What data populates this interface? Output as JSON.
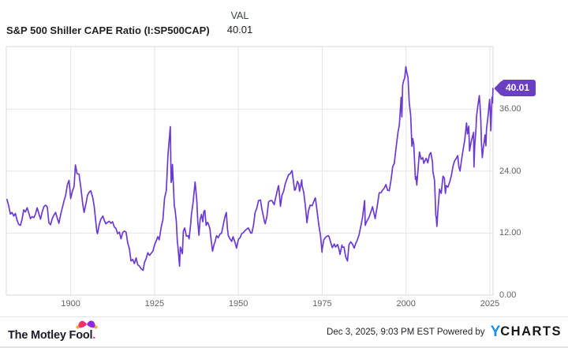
{
  "header": {
    "title": "S&P 500 Shiller CAPE Ratio (I:SP500CAP)",
    "val_label": "VAL",
    "val_value": "40.01"
  },
  "footer": {
    "fool_text": "The Motley Fool",
    "fool_dot": ".",
    "attribution": "Dec 3, 2025, 9:03 PM EST Powered by",
    "brand_y": "Y",
    "brand_rest": "CHARTS"
  },
  "chart_data": {
    "type": "line",
    "title": "S&P 500 Shiller CAPE Ratio (I:SP500CAP)",
    "series_name": "S&P 500 Shiller CAPE Ratio",
    "current_value_label": "40.01",
    "current_value": 40.01,
    "line_color": "#6b3ad3",
    "badge_color": "#6b3fc4",
    "grid_color": "#e4e4e4",
    "border_color": "#d9d9d9",
    "x_range": [
      1880.8,
      2025.95
    ],
    "y_range": [
      0,
      48.1
    ],
    "legend_position": "none",
    "grid": true,
    "x_ticks": [
      {
        "value": 1900,
        "label": "1900"
      },
      {
        "value": 1925,
        "label": "1925"
      },
      {
        "value": 1950,
        "label": "1950"
      },
      {
        "value": 1975,
        "label": "1975"
      },
      {
        "value": 2000,
        "label": "2000"
      },
      {
        "value": 2025,
        "label": "2025"
      }
    ],
    "y_ticks": [
      {
        "value": 0,
        "label": "0.00"
      },
      {
        "value": 12,
        "label": "12.00"
      },
      {
        "value": 24,
        "label": "24.00"
      },
      {
        "value": 36,
        "label": "36.00"
      }
    ],
    "points": [
      [
        1881,
        18.5
      ],
      [
        1881.5,
        17.3
      ],
      [
        1882,
        15.7
      ],
      [
        1882.5,
        16.0
      ],
      [
        1883,
        15.3
      ],
      [
        1883.5,
        15.8
      ],
      [
        1884,
        14.5
      ],
      [
        1884.5,
        13.7
      ],
      [
        1885,
        13.5
      ],
      [
        1885.5,
        14.7
      ],
      [
        1886,
        16.5
      ],
      [
        1886.5,
        16.1
      ],
      [
        1887,
        16.9
      ],
      [
        1887.5,
        15.9
      ],
      [
        1888,
        14.8
      ],
      [
        1888.5,
        15.2
      ],
      [
        1889,
        15.0
      ],
      [
        1889.5,
        15.7
      ],
      [
        1890,
        16.9
      ],
      [
        1890.5,
        15.8
      ],
      [
        1891,
        14.7
      ],
      [
        1891.5,
        16.1
      ],
      [
        1892,
        17.1
      ],
      [
        1892.5,
        17.4
      ],
      [
        1893,
        17.1
      ],
      [
        1893.5,
        14.0
      ],
      [
        1894,
        13.6
      ],
      [
        1894.5,
        14.8
      ],
      [
        1895,
        15.5
      ],
      [
        1895.5,
        16.0
      ],
      [
        1896,
        14.9
      ],
      [
        1896.5,
        13.9
      ],
      [
        1897,
        15.6
      ],
      [
        1897.5,
        16.9
      ],
      [
        1898,
        18.2
      ],
      [
        1898.5,
        19.3
      ],
      [
        1899,
        21.4
      ],
      [
        1899.5,
        22.2
      ],
      [
        1900,
        18.7
      ],
      [
        1900.5,
        20.1
      ],
      [
        1901,
        21.0
      ],
      [
        1901.4,
        25.2
      ],
      [
        1901.9,
        23.5
      ],
      [
        1902.5,
        23.4
      ],
      [
        1903,
        20.9
      ],
      [
        1903.6,
        17.6
      ],
      [
        1904,
        16.0
      ],
      [
        1904.6,
        17.9
      ],
      [
        1905,
        19.3
      ],
      [
        1905.5,
        19.9
      ],
      [
        1906,
        20.2
      ],
      [
        1906.6,
        18.8
      ],
      [
        1907,
        17.2
      ],
      [
        1907.8,
        12.2
      ],
      [
        1908,
        11.9
      ],
      [
        1908.5,
        13.6
      ],
      [
        1909,
        14.7
      ],
      [
        1909.6,
        15.3
      ],
      [
        1910,
        14.5
      ],
      [
        1910.5,
        13.8
      ],
      [
        1911,
        14.1
      ],
      [
        1911.5,
        14.3
      ],
      [
        1912,
        13.9
      ],
      [
        1912.5,
        14.2
      ],
      [
        1913,
        13.2
      ],
      [
        1913.5,
        12.9
      ],
      [
        1914,
        11.9
      ],
      [
        1914.5,
        12.2
      ],
      [
        1915,
        10.9
      ],
      [
        1915.5,
        12.1
      ],
      [
        1916,
        12.4
      ],
      [
        1916.5,
        12.2
      ],
      [
        1917,
        10.1
      ],
      [
        1917.5,
        9.0
      ],
      [
        1918,
        6.6
      ],
      [
        1918.5,
        6.9
      ],
      [
        1919,
        6.1
      ],
      [
        1919.5,
        7.2
      ],
      [
        1920,
        5.9
      ],
      [
        1920.5,
        5.6
      ],
      [
        1921,
        5.1
      ],
      [
        1921.6,
        4.8
      ],
      [
        1922,
        6.3
      ],
      [
        1922.5,
        7.1
      ],
      [
        1923,
        8.2
      ],
      [
        1923.5,
        7.7
      ],
      [
        1924,
        8.1
      ],
      [
        1924.5,
        8.5
      ],
      [
        1925,
        9.7
      ],
      [
        1925.5,
        10.5
      ],
      [
        1926,
        11.3
      ],
      [
        1926.4,
        10.7
      ],
      [
        1927,
        13.2
      ],
      [
        1927.5,
        14.6
      ],
      [
        1928,
        18.8
      ],
      [
        1928.5,
        20.2
      ],
      [
        1929,
        27.1
      ],
      [
        1929.7,
        32.6
      ],
      [
        1929.95,
        21.8
      ],
      [
        1930.1,
        22.3
      ],
      [
        1930.35,
        25.3
      ],
      [
        1930.9,
        17.2
      ],
      [
        1931.1,
        16.7
      ],
      [
        1931.5,
        14.3
      ],
      [
        1931.8,
        10.4
      ],
      [
        1932,
        9.3
      ],
      [
        1932.45,
        5.6
      ],
      [
        1932.7,
        9.3
      ],
      [
        1933,
        8.7
      ],
      [
        1933.3,
        8.0
      ],
      [
        1933.6,
        12.4
      ],
      [
        1934,
        13.0
      ],
      [
        1934.5,
        11.4
      ],
      [
        1935,
        11.5
      ],
      [
        1935.3,
        10.9
      ],
      [
        1935.8,
        13.9
      ],
      [
        1936,
        15.5
      ],
      [
        1936.5,
        18.0
      ],
      [
        1937.1,
        21.9
      ],
      [
        1937.6,
        18.5
      ],
      [
        1937.9,
        14.2
      ],
      [
        1938.25,
        11.6
      ],
      [
        1938.6,
        14.6
      ],
      [
        1939,
        15.6
      ],
      [
        1939.4,
        14.2
      ],
      [
        1939.7,
        16.2
      ],
      [
        1940,
        16.4
      ],
      [
        1940.4,
        13.5
      ],
      [
        1940.8,
        14.1
      ],
      [
        1941,
        13.9
      ],
      [
        1941.5,
        12.9
      ],
      [
        1942,
        10.1
      ],
      [
        1942.3,
        8.5
      ],
      [
        1942.8,
        9.9
      ],
      [
        1943,
        10.2
      ],
      [
        1943.5,
        11.5
      ],
      [
        1944,
        11.1
      ],
      [
        1944.5,
        11.8
      ],
      [
        1945,
        12.0
      ],
      [
        1945.5,
        13.6
      ],
      [
        1946,
        15.2
      ],
      [
        1946.4,
        16.0
      ],
      [
        1946.75,
        12.9
      ],
      [
        1947,
        11.5
      ],
      [
        1947.5,
        10.9
      ],
      [
        1948,
        10.4
      ],
      [
        1948.4,
        11.3
      ],
      [
        1949,
        10.2
      ],
      [
        1949.45,
        9.1
      ],
      [
        1950,
        10.8
      ],
      [
        1950.5,
        11.1
      ],
      [
        1951,
        11.9
      ],
      [
        1951.5,
        12.1
      ],
      [
        1952,
        12.5
      ],
      [
        1952.5,
        12.8
      ],
      [
        1953,
        13.0
      ],
      [
        1953.7,
        12.0
      ],
      [
        1954,
        12.0
      ],
      [
        1954.5,
        13.5
      ],
      [
        1955,
        16.0
      ],
      [
        1955.5,
        16.8
      ],
      [
        1956,
        18.3
      ],
      [
        1956.6,
        18.4
      ],
      [
        1957,
        16.7
      ],
      [
        1957.8,
        14.2
      ],
      [
        1958,
        13.8
      ],
      [
        1958.5,
        15.2
      ],
      [
        1959,
        18.0
      ],
      [
        1959.5,
        18.3
      ],
      [
        1960,
        18.3
      ],
      [
        1960.7,
        17.5
      ],
      [
        1961,
        18.5
      ],
      [
        1961.9,
        21.0
      ],
      [
        1962,
        21.2
      ],
      [
        1962.55,
        17.2
      ],
      [
        1963,
        19.3
      ],
      [
        1963.5,
        20.1
      ],
      [
        1964,
        21.6
      ],
      [
        1964.5,
        22.5
      ],
      [
        1965,
        23.3
      ],
      [
        1965.5,
        23.5
      ],
      [
        1966,
        24.1
      ],
      [
        1966.75,
        20.3
      ],
      [
        1967,
        20.4
      ],
      [
        1967.6,
        22.0
      ],
      [
        1968,
        21.5
      ],
      [
        1968.25,
        20.1
      ],
      [
        1968.9,
        22.3
      ],
      [
        1969,
        21.2
      ],
      [
        1969.5,
        19.9
      ],
      [
        1970,
        17.1
      ],
      [
        1970.45,
        14.0
      ],
      [
        1970.9,
        16.3
      ],
      [
        1971,
        16.5
      ],
      [
        1971.4,
        17.4
      ],
      [
        1972,
        17.3
      ],
      [
        1972.9,
        18.8
      ],
      [
        1973,
        18.7
      ],
      [
        1973.5,
        16.2
      ],
      [
        1974,
        13.5
      ],
      [
        1974.5,
        11.5
      ],
      [
        1974.95,
        8.3
      ],
      [
        1975,
        8.9
      ],
      [
        1975.5,
        10.7
      ],
      [
        1976,
        11.2
      ],
      [
        1976.7,
        11.5
      ],
      [
        1977,
        11.4
      ],
      [
        1977.5,
        10.3
      ],
      [
        1978,
        9.2
      ],
      [
        1978.6,
        9.9
      ],
      [
        1979,
        9.3
      ],
      [
        1979.6,
        9.8
      ],
      [
        1980,
        8.9
      ],
      [
        1980.3,
        7.9
      ],
      [
        1980.9,
        9.7
      ],
      [
        1981,
        9.3
      ],
      [
        1981.5,
        9.3
      ],
      [
        1982,
        7.4
      ],
      [
        1982.55,
        6.6
      ],
      [
        1983,
        9.8
      ],
      [
        1983.5,
        10.3
      ],
      [
        1984,
        9.9
      ],
      [
        1984.55,
        9.1
      ],
      [
        1985,
        10.0
      ],
      [
        1985.5,
        10.7
      ],
      [
        1986,
        11.7
      ],
      [
        1986.5,
        13.3
      ],
      [
        1987,
        14.9
      ],
      [
        1987.65,
        18.3
      ],
      [
        1987.85,
        13.5
      ],
      [
        1988,
        13.9
      ],
      [
        1988.5,
        14.5
      ],
      [
        1989,
        15.1
      ],
      [
        1989.5,
        16.1
      ],
      [
        1990,
        17.1
      ],
      [
        1990.8,
        14.8
      ],
      [
        1991,
        15.6
      ],
      [
        1991.5,
        17.6
      ],
      [
        1992,
        19.8
      ],
      [
        1992.5,
        19.8
      ],
      [
        1993,
        20.3
      ],
      [
        1993.5,
        20.7
      ],
      [
        1994,
        21.4
      ],
      [
        1994.5,
        20.3
      ],
      [
        1995,
        20.2
      ],
      [
        1995.5,
        22.2
      ],
      [
        1996,
        24.8
      ],
      [
        1996.5,
        25.5
      ],
      [
        1997,
        28.3
      ],
      [
        1997.6,
        31.5
      ],
      [
        1998,
        32.9
      ],
      [
        1998.55,
        38.3
      ],
      [
        1998.75,
        34.5
      ],
      [
        1999,
        40.6
      ],
      [
        1999.3,
        41.5
      ],
      [
        1999.6,
        42.0
      ],
      [
        1999.95,
        44.2
      ],
      [
        2000.2,
        43.2
      ],
      [
        2000.6,
        42.1
      ],
      [
        2000.9,
        38.0
      ],
      [
        2001,
        37.0
      ],
      [
        2001.4,
        34.8
      ],
      [
        2001.75,
        28.8
      ],
      [
        2002,
        30.3
      ],
      [
        2002.3,
        29.2
      ],
      [
        2002.8,
        22.4
      ],
      [
        2003,
        22.9
      ],
      [
        2003.2,
        21.3
      ],
      [
        2003.6,
        24.5
      ],
      [
        2004,
        27.7
      ],
      [
        2004.5,
        26.3
      ],
      [
        2005,
        26.6
      ],
      [
        2005.3,
        25.5
      ],
      [
        2006,
        26.5
      ],
      [
        2006.5,
        25.6
      ],
      [
        2007,
        27.2
      ],
      [
        2007.4,
        27.6
      ],
      [
        2007.9,
        25.7
      ],
      [
        2008,
        24.0
      ],
      [
        2008.5,
        22.2
      ],
      [
        2008.9,
        15.3
      ],
      [
        2009,
        15.2
      ],
      [
        2009.2,
        13.3
      ],
      [
        2009.5,
        16.4
      ],
      [
        2010,
        20.5
      ],
      [
        2010.5,
        19.7
      ],
      [
        2011,
        23.0
      ],
      [
        2011.4,
        22.7
      ],
      [
        2011.75,
        19.7
      ],
      [
        2012,
        21.2
      ],
      [
        2012.5,
        20.9
      ],
      [
        2013,
        21.9
      ],
      [
        2013.5,
        23.1
      ],
      [
        2014,
        24.9
      ],
      [
        2014.5,
        26.0
      ],
      [
        2015,
        26.5
      ],
      [
        2015.4,
        27.0
      ],
      [
        2015.75,
        24.9
      ],
      [
        2016.1,
        24.0
      ],
      [
        2016.5,
        25.9
      ],
      [
        2017,
        28.1
      ],
      [
        2017.5,
        30.0
      ],
      [
        2018.05,
        33.3
      ],
      [
        2018.3,
        31.2
      ],
      [
        2018.7,
        32.7
      ],
      [
        2018.95,
        27.9
      ],
      [
        2019.2,
        28.9
      ],
      [
        2019.5,
        29.9
      ],
      [
        2019.9,
        30.9
      ],
      [
        2020.15,
        31.5
      ],
      [
        2020.25,
        24.8
      ],
      [
        2020.5,
        28.9
      ],
      [
        2020.9,
        32.5
      ],
      [
        2021,
        34.5
      ],
      [
        2021.4,
        36.6
      ],
      [
        2021.85,
        38.6
      ],
      [
        2022.05,
        36.9
      ],
      [
        2022.3,
        33.8
      ],
      [
        2022.5,
        29.3
      ],
      [
        2022.75,
        26.6
      ],
      [
        2023,
        28.3
      ],
      [
        2023.35,
        29.8
      ],
      [
        2023.55,
        31.0
      ],
      [
        2023.8,
        28.9
      ],
      [
        2024,
        32.1
      ],
      [
        2024.3,
        33.8
      ],
      [
        2024.55,
        35.2
      ],
      [
        2024.75,
        36.8
      ],
      [
        2024.95,
        37.9
      ],
      [
        2025.1,
        35.5
      ],
      [
        2025.3,
        31.8
      ],
      [
        2025.5,
        36.0
      ],
      [
        2025.65,
        38.3
      ],
      [
        2025.78,
        37.2
      ],
      [
        2025.92,
        40.01
      ]
    ]
  }
}
